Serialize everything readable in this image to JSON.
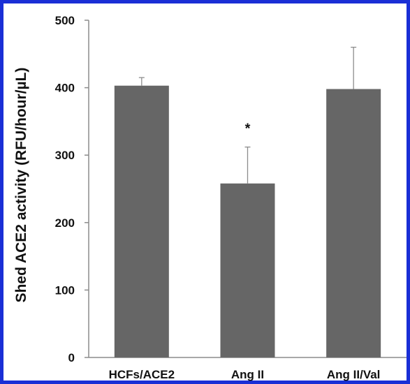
{
  "chart_data": {
    "type": "bar",
    "categories": [
      "HCFs/ACE2",
      "Ang II",
      "Ang II/Val"
    ],
    "series": [
      {
        "values": [
          403,
          258,
          398
        ],
        "error": [
          12,
          54,
          62
        ]
      }
    ],
    "annotations": [
      {
        "category": "Ang II",
        "text": "*"
      }
    ],
    "title": "",
    "xlabel": "",
    "ylabel": "Shed ACE2 activity (RFU/hour/µL)",
    "ylim": [
      0,
      500
    ],
    "yticks": [
      "0",
      "100",
      "200",
      "300",
      "400",
      "500"
    ],
    "grid": false,
    "legend": "none",
    "colors": {
      "bar": "#666666",
      "error_bar": "#8c8c8c",
      "axis": "#8c8c8c",
      "frame": "#1a2fd6"
    }
  }
}
